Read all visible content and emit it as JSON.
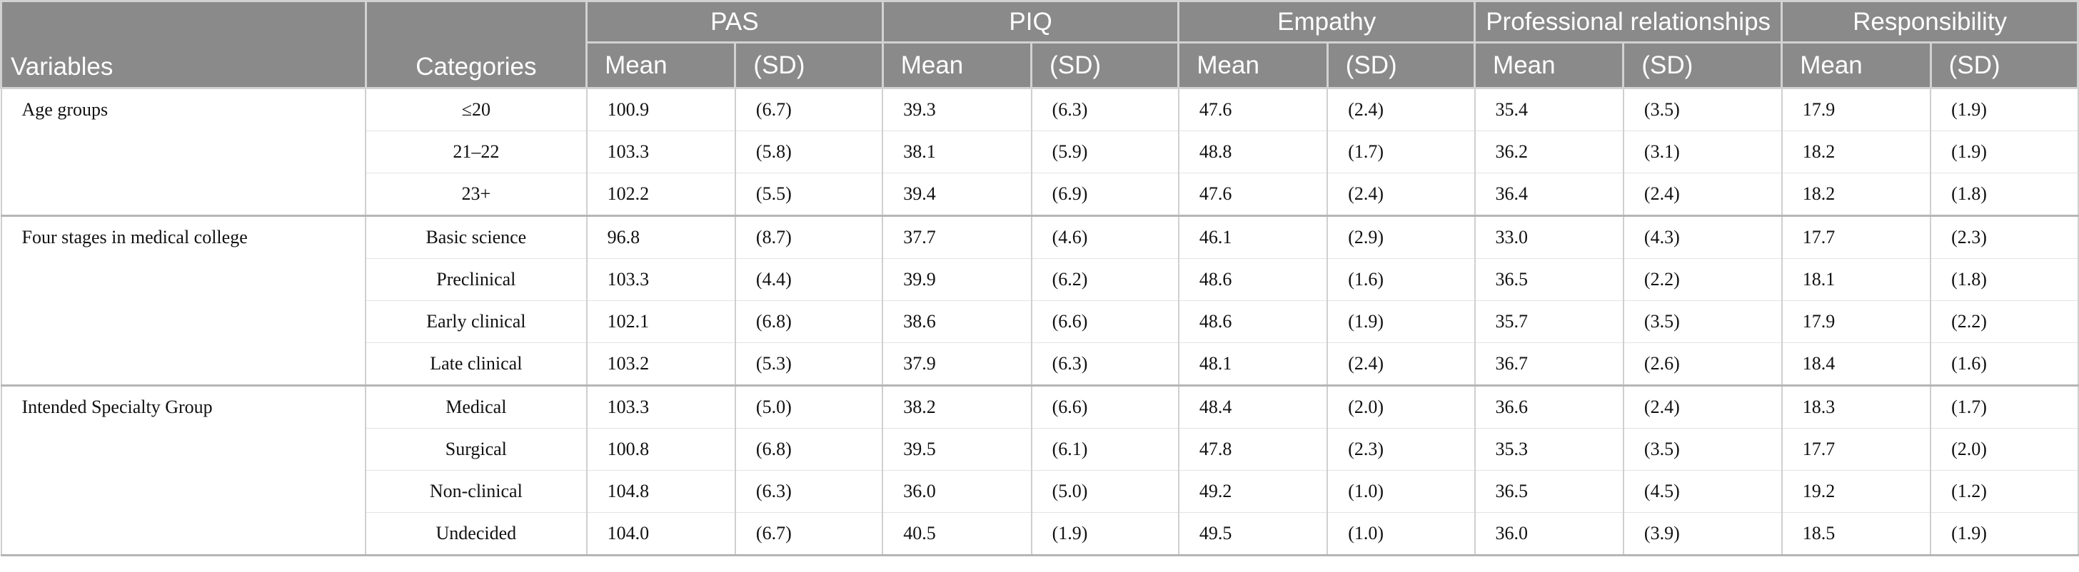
{
  "header": {
    "variables": "Variables",
    "categories": "Categories",
    "groups": [
      "PAS",
      "PIQ",
      "Empathy",
      "Professional relationships",
      "Responsibility"
    ],
    "mean_label": "Mean",
    "sd_label": "(SD)"
  },
  "sections": [
    {
      "variable": "Age groups",
      "rows": [
        {
          "category": "≤20",
          "values": [
            "100.9",
            "(6.7)",
            "39.3",
            "(6.3)",
            "47.6",
            "(2.4)",
            "35.4",
            "(3.5)",
            "17.9",
            "(1.9)"
          ]
        },
        {
          "category": "21–22",
          "values": [
            "103.3",
            "(5.8)",
            "38.1",
            "(5.9)",
            "48.8",
            "(1.7)",
            "36.2",
            "(3.1)",
            "18.2",
            "(1.9)"
          ]
        },
        {
          "category": "23+",
          "values": [
            "102.2",
            "(5.5)",
            "39.4",
            "(6.9)",
            "47.6",
            "(2.4)",
            "36.4",
            "(2.4)",
            "18.2",
            "(1.8)"
          ]
        }
      ]
    },
    {
      "variable": "Four stages in medical college",
      "rows": [
        {
          "category": "Basic science",
          "values": [
            "96.8",
            "(8.7)",
            "37.7",
            "(4.6)",
            "46.1",
            "(2.9)",
            "33.0",
            "(4.3)",
            "17.7",
            "(2.3)"
          ]
        },
        {
          "category": "Preclinical",
          "values": [
            "103.3",
            "(4.4)",
            "39.9",
            "(6.2)",
            "48.6",
            "(1.6)",
            "36.5",
            "(2.2)",
            "18.1",
            "(1.8)"
          ]
        },
        {
          "category": "Early clinical",
          "values": [
            "102.1",
            "(6.8)",
            "38.6",
            "(6.6)",
            "48.6",
            "(1.9)",
            "35.7",
            "(3.5)",
            "17.9",
            "(2.2)"
          ]
        },
        {
          "category": "Late clinical",
          "values": [
            "103.2",
            "(5.3)",
            "37.9",
            "(6.3)",
            "48.1",
            "(2.4)",
            "36.7",
            "(2.6)",
            "18.4",
            "(1.6)"
          ]
        }
      ]
    },
    {
      "variable": "Intended Specialty Group",
      "rows": [
        {
          "category": "Medical",
          "values": [
            "103.3",
            "(5.0)",
            "38.2",
            "(6.6)",
            "48.4",
            "(2.0)",
            "36.6",
            "(2.4)",
            "18.3",
            "(1.7)"
          ]
        },
        {
          "category": "Surgical",
          "values": [
            "100.8",
            "(6.8)",
            "39.5",
            "(6.1)",
            "47.8",
            "(2.3)",
            "35.3",
            "(3.5)",
            "17.7",
            "(2.0)"
          ]
        },
        {
          "category": "Non-clinical",
          "values": [
            "104.8",
            "(6.3)",
            "36.0",
            "(5.0)",
            "49.2",
            "(1.0)",
            "36.5",
            "(4.5)",
            "19.2",
            "(1.2)"
          ]
        },
        {
          "category": "Undecided",
          "values": [
            "104.0",
            "(6.7)",
            "40.5",
            "(1.9)",
            "49.5",
            "(1.0)",
            "36.0",
            "(3.9)",
            "18.5",
            "(1.9)"
          ]
        }
      ]
    }
  ]
}
